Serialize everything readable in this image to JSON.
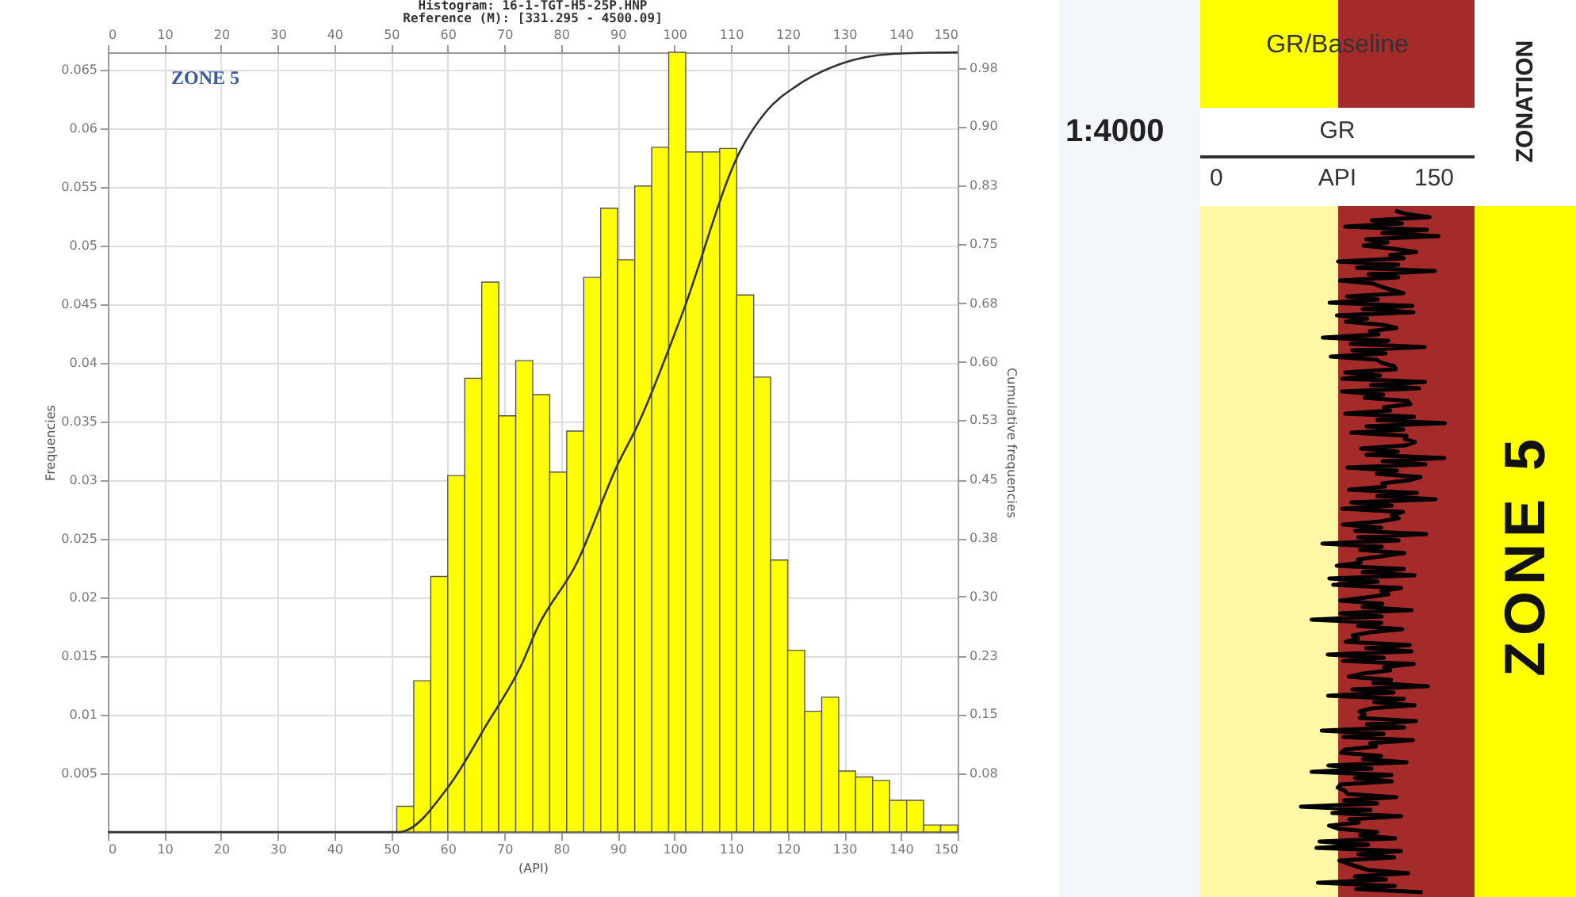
{
  "chart_data": [
    {
      "type": "histogram",
      "title": "Histogram: 16-1-TGT-H5-25P.HNP",
      "subtitle": "Reference (M): [331.295 - 4500.09]",
      "xlabel": "(API)",
      "ylabel": "Frequencies",
      "y2label": "Cumulative frequencies",
      "annotations": [
        "ZONE 5"
      ],
      "bins": [
        51,
        54,
        57,
        60,
        63,
        66,
        69,
        72,
        75,
        78,
        81,
        84,
        87,
        90,
        93,
        96,
        99,
        102,
        105,
        108,
        111,
        114,
        117,
        120,
        123,
        126,
        129,
        132,
        135,
        138,
        141,
        144,
        147,
        150
      ],
      "values": [
        0.0022,
        0.0129,
        0.0218,
        0.0304,
        0.0387,
        0.0469,
        0.0355,
        0.0402,
        0.0373,
        0.0307,
        0.0342,
        0.0473,
        0.0532,
        0.0488,
        0.0551,
        0.0584,
        0.0665,
        0.058,
        0.058,
        0.0583,
        0.0458,
        0.0388,
        0.0232,
        0.0155,
        0.0103,
        0.0115,
        0.0052,
        0.0047,
        0.0044,
        0.0027,
        0.0027,
        0.0006,
        0.0006
      ],
      "color": "#ffff00",
      "series": [
        {
          "type": "line",
          "axis": "y2",
          "color": "#333333",
          "x": [
            0,
            51.4,
            60.3,
            66.8,
            73.3,
            75.7,
            82.7,
            90.1,
            93.4,
            101.3,
            111.6,
            116.2,
            121.8,
            129.3,
            138.6,
            150
          ],
          "values": [
            0,
            0,
            0.06,
            0.137,
            0.219,
            0.26,
            0.344,
            0.473,
            0.52,
            0.663,
            0.873,
            0.924,
            0.958,
            0.985,
            0.998,
            1.0
          ]
        }
      ],
      "xlim": [
        0,
        150
      ],
      "xticks": [
        0,
        10,
        20,
        30,
        40,
        50,
        60,
        70,
        80,
        90,
        100,
        110,
        120,
        130,
        140,
        150
      ],
      "x2lim": [
        0,
        150
      ],
      "x2ticks": [
        0,
        10,
        20,
        30,
        40,
        50,
        60,
        70,
        80,
        90,
        100,
        110,
        120,
        130,
        140,
        150
      ],
      "ylim": [
        0,
        0.0665
      ],
      "yticks": [
        0.005,
        0.01,
        0.015,
        0.02,
        0.025,
        0.03,
        0.035,
        0.04,
        0.045,
        0.05,
        0.055,
        0.06,
        0.065
      ],
      "y2lim": [
        0,
        1.0
      ],
      "y2ticks": [
        {
          "value": 0.075,
          "label": "0.08"
        },
        {
          "value": 0.151,
          "label": "0.15"
        },
        {
          "value": 0.226,
          "label": "0.23"
        },
        {
          "value": 0.302,
          "label": "0.30"
        },
        {
          "value": 0.377,
          "label": "0.38"
        },
        {
          "value": 0.452,
          "label": "0.45"
        },
        {
          "value": 0.528,
          "label": "0.53"
        },
        {
          "value": 0.603,
          "label": "0.60"
        },
        {
          "value": 0.678,
          "label": "0.68"
        },
        {
          "value": 0.754,
          "label": "0.75"
        },
        {
          "value": 0.829,
          "label": "0.83"
        },
        {
          "value": 0.905,
          "label": "0.90"
        },
        {
          "value": 0.98,
          "label": "0.98"
        }
      ],
      "grid": true
    },
    {
      "type": "other",
      "annotations": [
        "1:4000",
        "GR/Baseline",
        "GR",
        "0",
        "API",
        "150",
        "ZONATION",
        "ZONE 5"
      ]
    }
  ]
}
